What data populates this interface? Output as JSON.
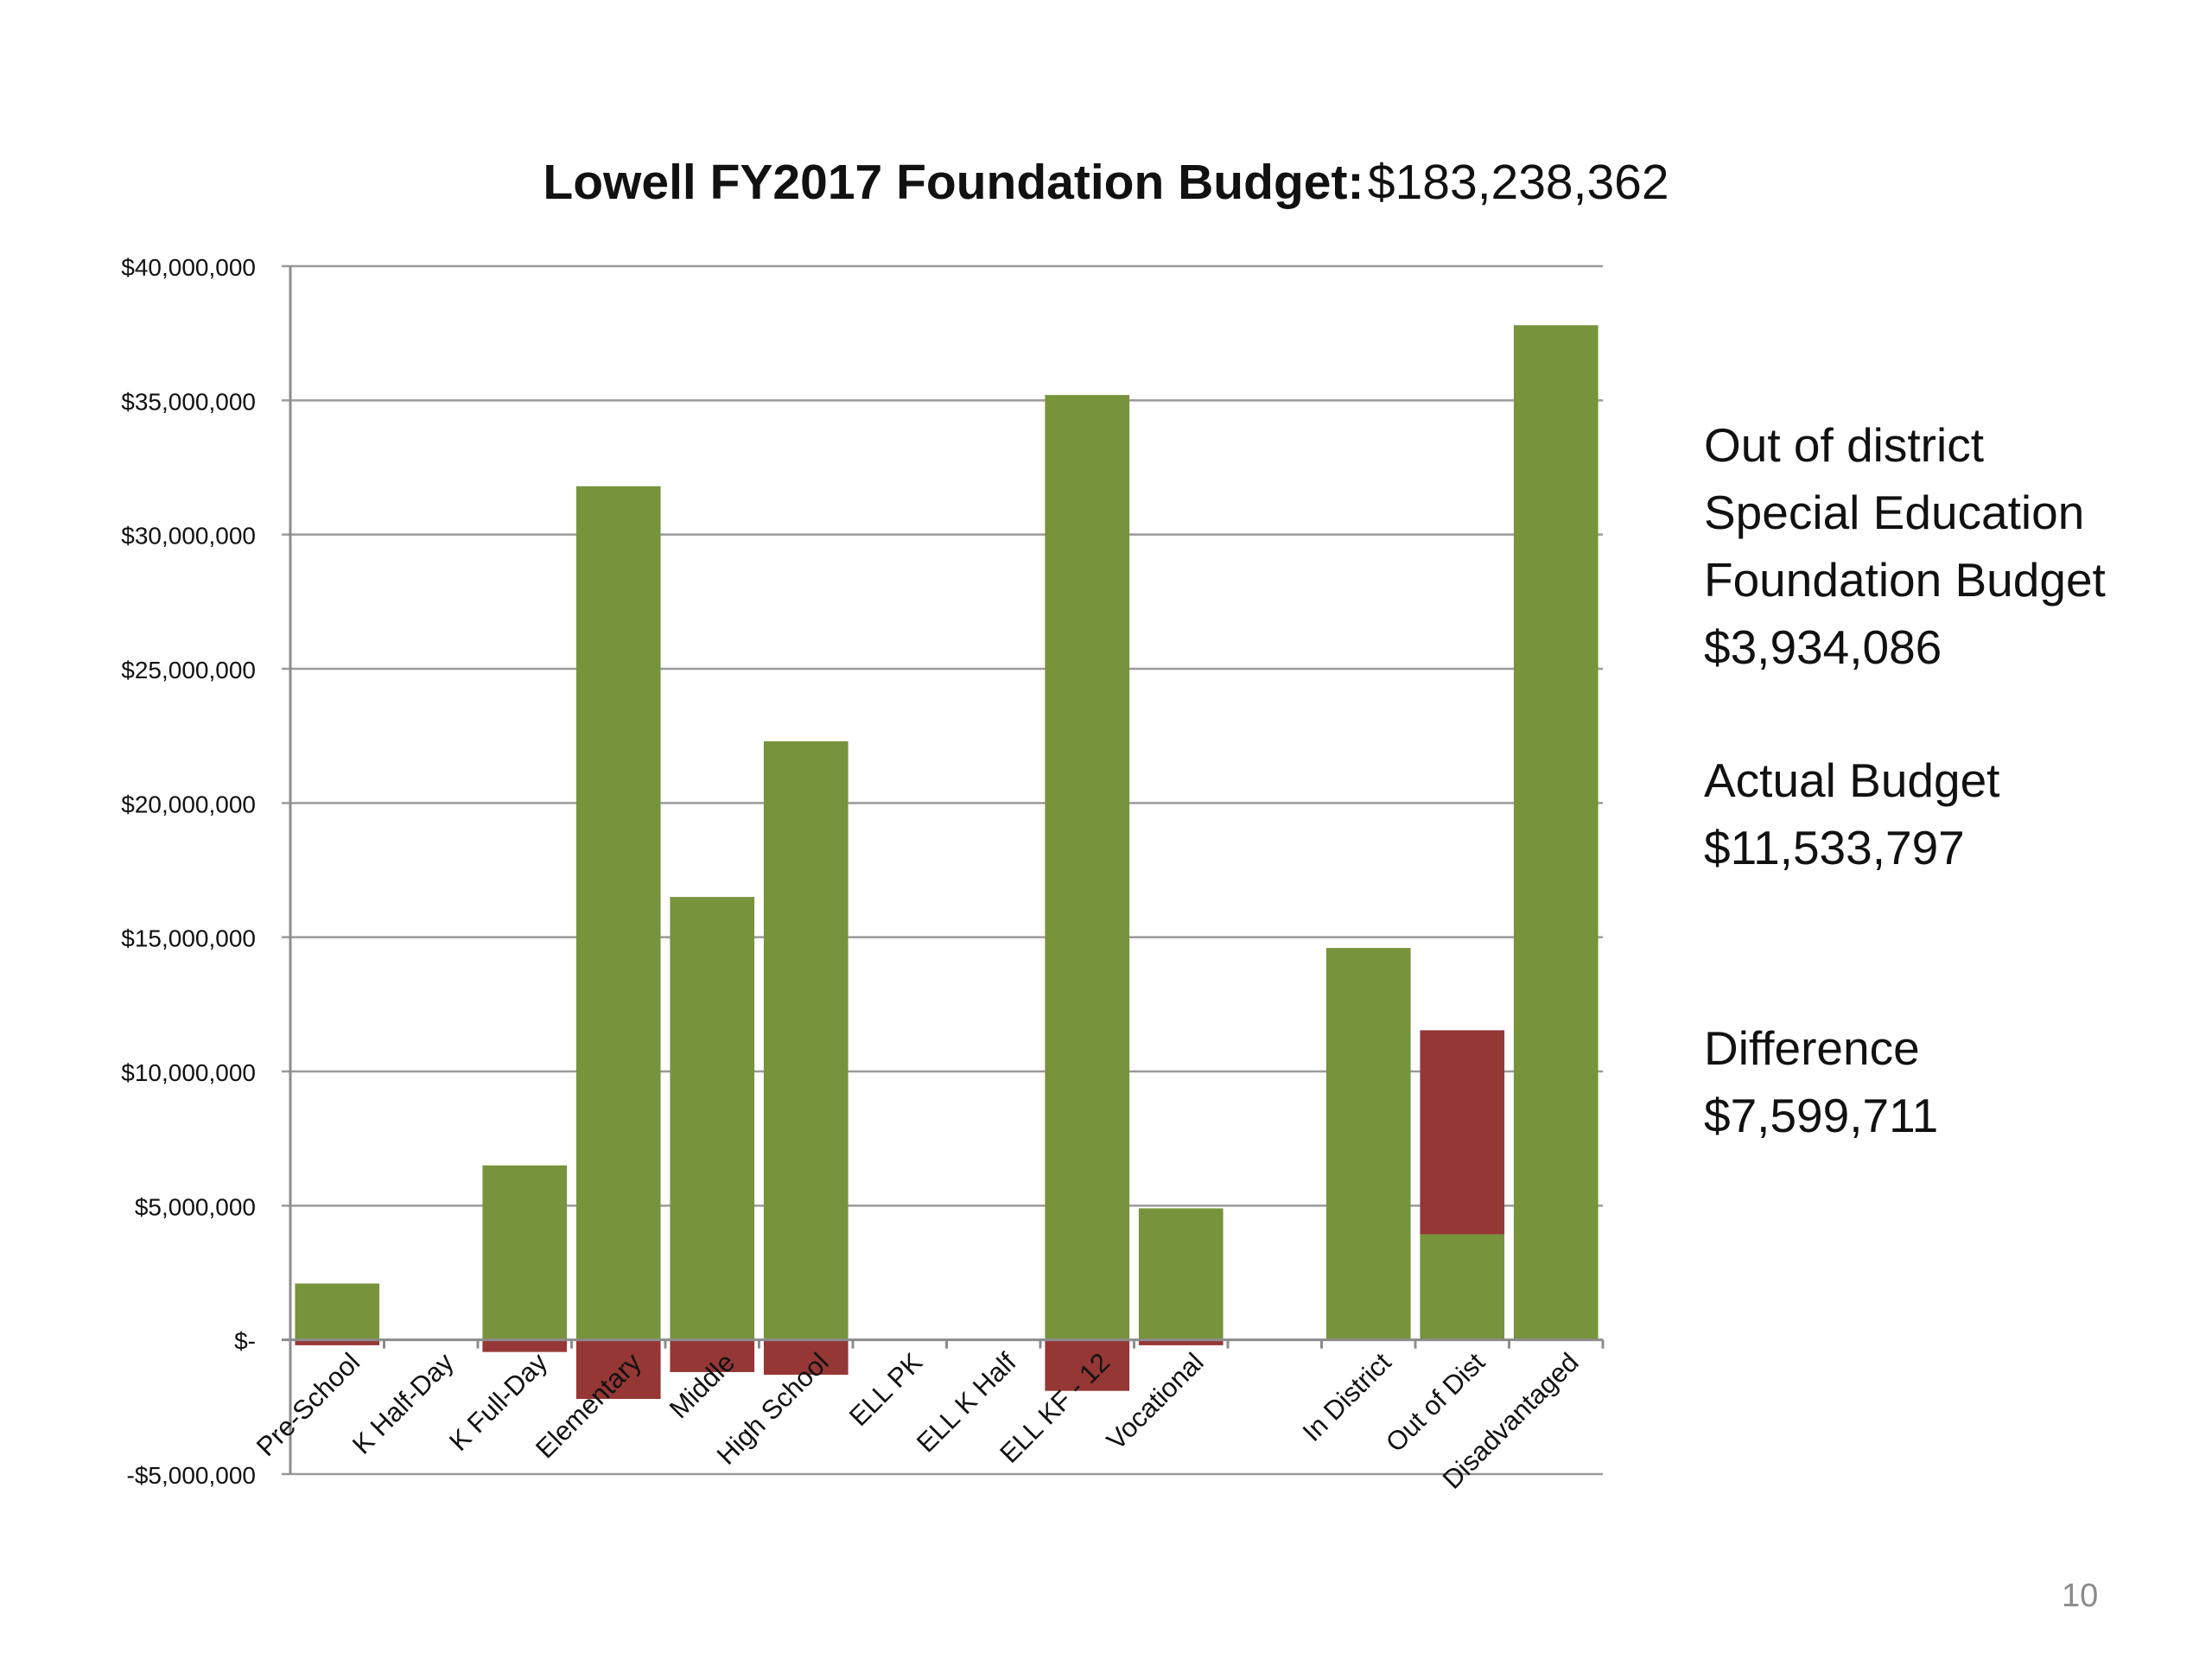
{
  "slide": {
    "number": "10"
  },
  "annotations": {
    "out_of_district": [
      "Out of district",
      "Special Education",
      "Foundation Budget",
      "$3,934,086"
    ],
    "actual_budget": [
      "Actual Budget",
      "$11,533,797"
    ],
    "difference": [
      "Difference",
      "$7,599,711"
    ]
  },
  "colors": {
    "positive": "#77933c",
    "negative": "#953735",
    "grid": "#9a9a9a",
    "axis": "#8c8c8c"
  },
  "chart_data": {
    "type": "bar",
    "title": "Lowell FY2017 Foundation Budget:",
    "title_value": "$183,238,362",
    "ylim": [
      -5000000,
      40000000
    ],
    "yticks": [
      40000000,
      35000000,
      30000000,
      25000000,
      20000000,
      15000000,
      10000000,
      5000000,
      0,
      -5000000
    ],
    "ytick_labels": [
      "$40,000,000",
      "$35,000,000",
      "$30,000,000",
      "$25,000,000",
      "$20,000,000",
      "$15,000,000",
      "$10,000,000",
      "$5,000,000",
      "$-",
      "-$5,000,000"
    ],
    "grid": true,
    "categories": [
      "Pre-School",
      "K Half-Day",
      "K Full-Day",
      "Elementary",
      "Middle",
      "High School",
      "ELL PK",
      "ELL K Half",
      "ELL KF - 12",
      "Vocational",
      "",
      "In District",
      "Out of Dist",
      "Disadvantaged"
    ],
    "series": [
      {
        "values": [
          2100000,
          0,
          6500000,
          31800000,
          16500000,
          22300000,
          0,
          0,
          35200000,
          4900000,
          0,
          14600000,
          3934086,
          37800000
        ]
      },
      {
        "values": [
          -200000,
          0,
          -450000,
          -2200000,
          -1200000,
          -1300000,
          0,
          0,
          -1900000,
          -200000,
          0,
          0,
          7599711,
          0
        ]
      }
    ]
  }
}
